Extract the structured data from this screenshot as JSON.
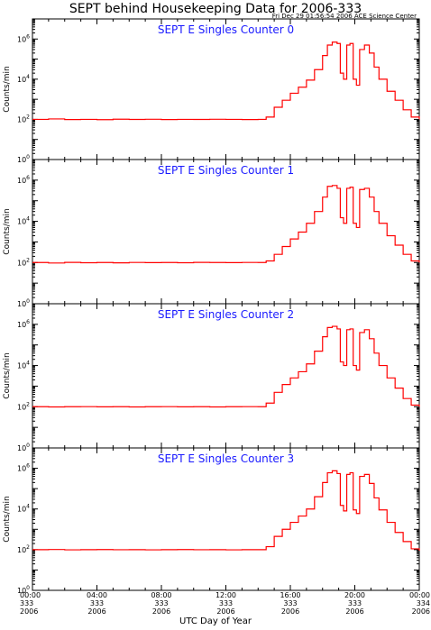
{
  "title": "SEPT behind Housekeeping Data for 2006-333",
  "timestamp": "Fri Dec 29 01:56:54 2006 ACE Science Center",
  "xlabel": "UTC Day of Year",
  "colors": {
    "trace": "#ff0000",
    "panel_title": "#1a1aff",
    "axis": "#000000"
  },
  "x_ticks": [
    {
      "time": "00:00",
      "doy": "333",
      "year": "2006"
    },
    {
      "time": "04:00",
      "doy": "333",
      "year": "2006"
    },
    {
      "time": "08:00",
      "doy": "333",
      "year": "2006"
    },
    {
      "time": "12:00",
      "doy": "333",
      "year": "2006"
    },
    {
      "time": "16:00",
      "doy": "333",
      "year": "2006"
    },
    {
      "time": "20:00",
      "doy": "333",
      "year": "2006"
    },
    {
      "time": "00:00",
      "doy": "334",
      "year": "2006"
    }
  ],
  "chart_data": [
    {
      "type": "line",
      "title": "SEPT E Singles Counter 0",
      "ylabel": "Counts/min",
      "yscale": "log",
      "ylim": [
        1,
        10000000
      ],
      "y_ticks": [
        "10^0",
        "10^2",
        "10^4",
        "10^6"
      ],
      "xlim": [
        0,
        24
      ],
      "x_unit": "hours UTC",
      "series": [
        {
          "values": [
            [
              0,
              100
            ],
            [
              1,
              105
            ],
            [
              2,
              98
            ],
            [
              3,
              100
            ],
            [
              4,
              97
            ],
            [
              5,
              102
            ],
            [
              6,
              99
            ],
            [
              7,
              101
            ],
            [
              8,
              98
            ],
            [
              9,
              100
            ],
            [
              10,
              99
            ],
            [
              11,
              101
            ],
            [
              12,
              100
            ],
            [
              13,
              98
            ],
            [
              14,
              100
            ],
            [
              14.5,
              130
            ],
            [
              15,
              400
            ],
            [
              15.5,
              900
            ],
            [
              16,
              2000
            ],
            [
              16.5,
              4000
            ],
            [
              17,
              9000
            ],
            [
              17.5,
              30000
            ],
            [
              18,
              150000
            ],
            [
              18.3,
              500000
            ],
            [
              18.6,
              700000
            ],
            [
              18.9,
              600000
            ],
            [
              19.1,
              20000
            ],
            [
              19.3,
              10000
            ],
            [
              19.5,
              500000
            ],
            [
              19.7,
              600000
            ],
            [
              19.9,
              10000
            ],
            [
              20.1,
              5000
            ],
            [
              20.3,
              300000
            ],
            [
              20.6,
              500000
            ],
            [
              20.9,
              200000
            ],
            [
              21.2,
              40000
            ],
            [
              21.5,
              10000
            ],
            [
              22,
              2500
            ],
            [
              22.5,
              900
            ],
            [
              23,
              300
            ],
            [
              23.5,
              130
            ],
            [
              24,
              100
            ]
          ]
        }
      ]
    },
    {
      "type": "line",
      "title": "SEPT E Singles Counter 1",
      "ylabel": "Counts/min",
      "yscale": "log",
      "ylim": [
        1,
        10000000
      ],
      "y_ticks": [
        "10^0",
        "10^2",
        "10^4",
        "10^6"
      ],
      "xlim": [
        0,
        24
      ],
      "x_unit": "hours UTC",
      "series": [
        {
          "values": [
            [
              0,
              100
            ],
            [
              1,
              95
            ],
            [
              2,
              102
            ],
            [
              3,
              98
            ],
            [
              4,
              100
            ],
            [
              5,
              97
            ],
            [
              6,
              101
            ],
            [
              7,
              99
            ],
            [
              8,
              100
            ],
            [
              9,
              98
            ],
            [
              10,
              102
            ],
            [
              11,
              100
            ],
            [
              12,
              99
            ],
            [
              13,
              101
            ],
            [
              14,
              100
            ],
            [
              14.5,
              120
            ],
            [
              15,
              250
            ],
            [
              15.5,
              600
            ],
            [
              16,
              1400
            ],
            [
              16.5,
              3000
            ],
            [
              17,
              8000
            ],
            [
              17.5,
              30000
            ],
            [
              18,
              150000
            ],
            [
              18.3,
              500000
            ],
            [
              18.6,
              550000
            ],
            [
              18.9,
              400000
            ],
            [
              19.1,
              15000
            ],
            [
              19.3,
              8000
            ],
            [
              19.5,
              400000
            ],
            [
              19.7,
              450000
            ],
            [
              19.9,
              8000
            ],
            [
              20.1,
              5000
            ],
            [
              20.3,
              350000
            ],
            [
              20.6,
              400000
            ],
            [
              20.9,
              150000
            ],
            [
              21.2,
              30000
            ],
            [
              21.5,
              8000
            ],
            [
              22,
              2000
            ],
            [
              22.5,
              700
            ],
            [
              23,
              250
            ],
            [
              23.5,
              120
            ],
            [
              24,
              100
            ]
          ]
        }
      ]
    },
    {
      "type": "line",
      "title": "SEPT E Singles Counter 2",
      "ylabel": "Counts/min",
      "yscale": "log",
      "ylim": [
        1,
        10000000
      ],
      "y_ticks": [
        "10^0",
        "10^2",
        "10^4",
        "10^6"
      ],
      "xlim": [
        0,
        24
      ],
      "x_unit": "hours UTC",
      "series": [
        {
          "values": [
            [
              0,
              100
            ],
            [
              1,
              98
            ],
            [
              2,
              100
            ],
            [
              3,
              101
            ],
            [
              4,
              99
            ],
            [
              5,
              100
            ],
            [
              6,
              98
            ],
            [
              7,
              100
            ],
            [
              8,
              101
            ],
            [
              9,
              99
            ],
            [
              10,
              100
            ],
            [
              11,
              98
            ],
            [
              12,
              100
            ],
            [
              13,
              101
            ],
            [
              14,
              100
            ],
            [
              14.5,
              150
            ],
            [
              15,
              500
            ],
            [
              15.5,
              1200
            ],
            [
              16,
              2500
            ],
            [
              16.5,
              5000
            ],
            [
              17,
              12000
            ],
            [
              17.5,
              50000
            ],
            [
              18,
              250000
            ],
            [
              18.3,
              700000
            ],
            [
              18.6,
              800000
            ],
            [
              18.9,
              600000
            ],
            [
              19.1,
              15000
            ],
            [
              19.3,
              10000
            ],
            [
              19.5,
              550000
            ],
            [
              19.7,
              600000
            ],
            [
              19.9,
              10000
            ],
            [
              20.1,
              6000
            ],
            [
              20.3,
              400000
            ],
            [
              20.6,
              550000
            ],
            [
              20.9,
              200000
            ],
            [
              21.2,
              40000
            ],
            [
              21.5,
              10000
            ],
            [
              22,
              2500
            ],
            [
              22.5,
              800
            ],
            [
              23,
              250
            ],
            [
              23.5,
              120
            ],
            [
              24,
              100
            ]
          ]
        }
      ]
    },
    {
      "type": "line",
      "title": "SEPT E Singles Counter 3",
      "ylabel": "Counts/min",
      "yscale": "log",
      "ylim": [
        1,
        10000000
      ],
      "y_ticks": [
        "10^0",
        "10^2",
        "10^4",
        "10^6"
      ],
      "xlim": [
        0,
        24
      ],
      "x_unit": "hours UTC",
      "series": [
        {
          "values": [
            [
              0,
              100
            ],
            [
              1,
              102
            ],
            [
              2,
              98
            ],
            [
              3,
              100
            ],
            [
              4,
              101
            ],
            [
              5,
              99
            ],
            [
              6,
              100
            ],
            [
              7,
              98
            ],
            [
              8,
              100
            ],
            [
              9,
              101
            ],
            [
              10,
              99
            ],
            [
              11,
              100
            ],
            [
              12,
              98
            ],
            [
              13,
              100
            ],
            [
              14,
              100
            ],
            [
              14.5,
              140
            ],
            [
              15,
              450
            ],
            [
              15.5,
              1000
            ],
            [
              16,
              2200
            ],
            [
              16.5,
              4500
            ],
            [
              17,
              10000
            ],
            [
              17.5,
              40000
            ],
            [
              18,
              200000
            ],
            [
              18.3,
              600000
            ],
            [
              18.6,
              750000
            ],
            [
              18.9,
              550000
            ],
            [
              19.1,
              15000
            ],
            [
              19.3,
              8000
            ],
            [
              19.5,
              500000
            ],
            [
              19.7,
              600000
            ],
            [
              19.9,
              9000
            ],
            [
              20.1,
              6000
            ],
            [
              20.3,
              400000
            ],
            [
              20.6,
              500000
            ],
            [
              20.9,
              180000
            ],
            [
              21.2,
              35000
            ],
            [
              21.5,
              9000
            ],
            [
              22,
              2200
            ],
            [
              22.5,
              700
            ],
            [
              23,
              250
            ],
            [
              23.5,
              110
            ],
            [
              24,
              90
            ]
          ]
        }
      ]
    }
  ]
}
